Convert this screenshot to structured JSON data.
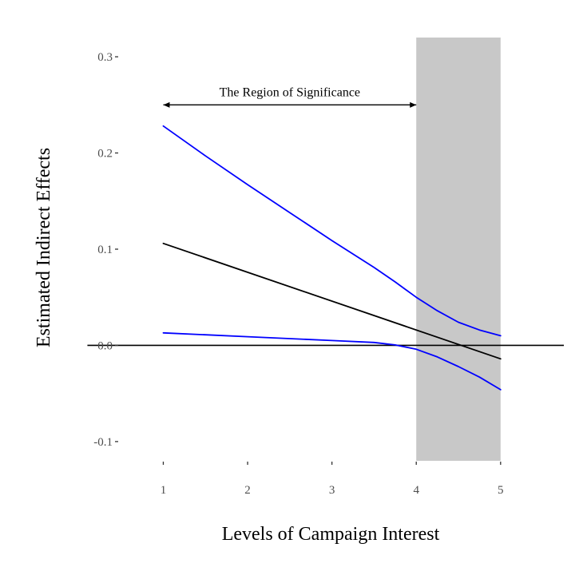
{
  "chart_data": {
    "type": "line",
    "title": "",
    "xlabel": "Levels of Campaign Interest",
    "ylabel": "Estimated Indirect Effects",
    "xlim": [
      0.2,
      5.75
    ],
    "ylim": [
      -0.12,
      0.32
    ],
    "x_ticks": [
      1,
      2,
      3,
      4,
      5
    ],
    "x_tick_labels": [
      "1",
      "2",
      "3",
      "4",
      "5"
    ],
    "y_ticks": [
      -0.1,
      0.0,
      0.1,
      0.2,
      0.3
    ],
    "y_tick_labels": [
      "-0.1",
      "0.0",
      "0.1",
      "0.2",
      "0.3"
    ],
    "grid": false,
    "shaded_region": {
      "x_start": 4,
      "x_end": 5,
      "color": "#c8c8c8"
    },
    "reference_line": {
      "y": 0,
      "x_start": 0.1,
      "x_end": 5.75,
      "color": "#000000"
    },
    "annotation": {
      "text": "The Region of Significance",
      "x_start": 1,
      "x_end": 4,
      "y": 0.25
    },
    "series": [
      {
        "color": "#0000ff",
        "x": [
          1,
          1.5,
          2,
          2.5,
          3,
          3.5,
          3.75,
          4,
          4.25,
          4.5,
          4.75,
          5
        ],
        "values": [
          0.228,
          0.197,
          0.167,
          0.138,
          0.109,
          0.081,
          0.066,
          0.05,
          0.036,
          0.024,
          0.016,
          0.01
        ]
      },
      {
        "color": "#000000",
        "x": [
          1,
          5
        ],
        "values": [
          0.106,
          -0.014
        ]
      },
      {
        "color": "#0000ff",
        "x": [
          1,
          1.5,
          2,
          2.5,
          3,
          3.5,
          3.75,
          4,
          4.25,
          4.5,
          4.75,
          5
        ],
        "values": [
          0.013,
          0.011,
          0.009,
          0.007,
          0.005,
          0.003,
          0.0005,
          -0.004,
          -0.012,
          -0.022,
          -0.033,
          -0.046
        ]
      }
    ]
  }
}
